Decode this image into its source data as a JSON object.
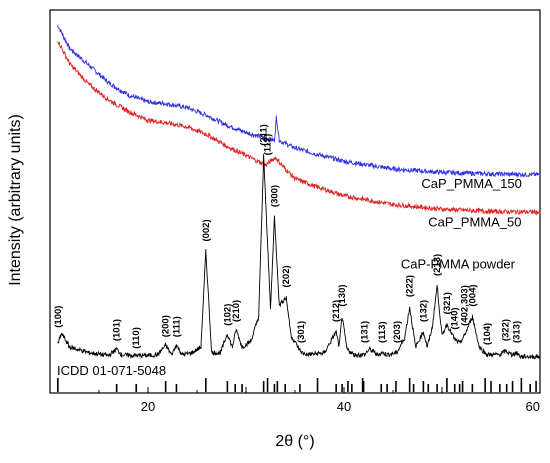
{
  "chart_data": {
    "type": "line",
    "title": "",
    "xlabel": "2θ (°)",
    "ylabel": "Intensity (arbitrary units)",
    "xlim": [
      10,
      60
    ],
    "xticks": [
      20,
      40,
      60
    ],
    "ylim": [
      0,
      100
    ],
    "y_ticks_shown": false,
    "grid": false,
    "colors": {
      "blue": "#3030e0",
      "red": "#e02020",
      "black": "#000000"
    },
    "series": [
      {
        "name": "CaP_PMMA_150",
        "color": "#3030e0",
        "x": [
          10.8,
          12,
          14,
          16,
          18,
          20,
          22,
          24,
          26,
          28,
          30,
          32,
          32.9,
          33.1,
          33.4,
          33.7,
          35,
          37,
          40,
          45,
          50,
          55,
          60
        ],
        "y": [
          96,
          90,
          85.5,
          81,
          77.8,
          76,
          75.5,
          74.5,
          72.5,
          70,
          68,
          66.5,
          66,
          72,
          66,
          65.5,
          64,
          62.5,
          60.5,
          58.5,
          57.6,
          57.2,
          57
        ]
      },
      {
        "name": "CaP_PMMA_50",
        "color": "#e02020",
        "x": [
          10.8,
          12,
          14,
          16,
          18,
          20,
          22,
          24,
          26,
          28,
          30,
          32,
          33,
          34,
          35,
          37,
          40,
          45,
          50,
          55,
          60
        ],
        "y": [
          92,
          86,
          80.5,
          76.5,
          73.5,
          71.2,
          70.5,
          69.5,
          67.5,
          64.5,
          62,
          59.5,
          61.5,
          58.5,
          56,
          54,
          51.5,
          49.2,
          48,
          47.4,
          47.2
        ]
      },
      {
        "name": "CaP-PMMA powder",
        "color": "#000000",
        "x": [
          10.8,
          11.2,
          12,
          14,
          16,
          16.8,
          17.3,
          18,
          19,
          20,
          21,
          21.8,
          22.4,
          22.9,
          23.5,
          24.5,
          25.4,
          25.9,
          26.5,
          27.4,
          28.1,
          28.6,
          29,
          29.6,
          30.5,
          31.3,
          31.8,
          32.2,
          32.5,
          32.9,
          33.4,
          34.1,
          34.6,
          35.3,
          35.7,
          36.3,
          38,
          39.2,
          39.5,
          39.8,
          40.3,
          41,
          42.1,
          42.6,
          43.4,
          43.9,
          44.4,
          45.4,
          46.2,
          46.7,
          47.3,
          48.1,
          48.5,
          49,
          49.5,
          50,
          50.5,
          51.3,
          51.8,
          52.3,
          53.1,
          53.8,
          54.6,
          55.9,
          56.5,
          57.1,
          57.6,
          58,
          59,
          60
        ],
        "y": [
          13,
          15.5,
          12,
          10.5,
          9.8,
          11.5,
          10,
          9.8,
          9.8,
          9.8,
          10,
          12.5,
          10,
          12.5,
          10,
          10.5,
          12,
          37,
          10.5,
          10.5,
          15.5,
          12,
          16.5,
          12,
          13.5,
          20,
          62,
          39,
          22,
          46,
          23,
          25,
          15,
          12,
          10.5,
          10,
          10.5,
          16,
          12,
          20,
          11.5,
          10,
          10,
          11.5,
          10,
          10.5,
          10,
          10.5,
          14.5,
          22.5,
          12,
          16,
          12,
          17,
          28,
          15,
          18,
          14,
          13,
          15,
          20,
          12,
          10,
          10,
          11,
          10,
          10.5,
          9.5,
          9.5,
          9.5
        ]
      }
    ],
    "reference_label": "ICDD 01-071-5048",
    "reference_ticks": [
      10.8,
      16.8,
      18.8,
      21.8,
      22.9,
      25.9,
      28.1,
      28.9,
      29.6,
      31.8,
      32.2,
      32.9,
      33.2,
      34.0,
      35.5,
      37.3,
      39.2,
      39.8,
      40.4,
      40.8,
      41.9,
      42.0,
      43.8,
      44.4,
      45.3,
      46.7,
      47.1,
      48.1,
      48.6,
      49.5,
      50.5,
      51.3,
      51.8,
      52.1,
      53.1,
      54.4,
      55.0,
      55.9,
      56.6,
      57.2,
      58.1,
      59.0,
      59.6
    ],
    "peak_labels": [
      {
        "text": "(100)",
        "x": 10.8,
        "y": 16,
        "rot": -90
      },
      {
        "text": "(101)",
        "x": 16.8,
        "y": 12.5,
        "rot": -90
      },
      {
        "text": "(110)",
        "x": 18.8,
        "y": 10.5,
        "rot": -90
      },
      {
        "text": "(200)",
        "x": 21.8,
        "y": 13.5,
        "rot": -90
      },
      {
        "text": "(111)",
        "x": 22.9,
        "y": 13.5,
        "rot": -90
      },
      {
        "text": "(002)",
        "x": 25.9,
        "y": 38.5,
        "rot": -90
      },
      {
        "text": "(102)",
        "x": 28.1,
        "y": 16.5,
        "rot": -90
      },
      {
        "text": "(210)",
        "x": 29.0,
        "y": 17.5,
        "rot": -90
      },
      {
        "text": "(211)",
        "x": 31.8,
        "y": 63.5,
        "rot": -90
      },
      {
        "text": "(112)",
        "x": 32.2,
        "y": 61,
        "rot": -90
      },
      {
        "text": "(300)",
        "x": 32.9,
        "y": 47.5,
        "rot": -90
      },
      {
        "text": "(202)",
        "x": 34.1,
        "y": 26.5,
        "rot": -90
      },
      {
        "text": "(301)",
        "x": 35.6,
        "y": 12,
        "rot": -90
      },
      {
        "text": "(212)",
        "x": 39.2,
        "y": 17.5,
        "rot": -90
      },
      {
        "text": "(130)",
        "x": 39.8,
        "y": 21.5,
        "rot": -90
      },
      {
        "text": "(131)",
        "x": 42.1,
        "y": 12,
        "rot": -90
      },
      {
        "text": "(113)",
        "x": 43.9,
        "y": 12,
        "rot": -90
      },
      {
        "text": "(203)",
        "x": 45.4,
        "y": 12,
        "rot": -90
      },
      {
        "text": "(222)",
        "x": 46.7,
        "y": 24,
        "rot": -90
      },
      {
        "text": "(132)",
        "x": 48.1,
        "y": 17.5,
        "rot": -90
      },
      {
        "text": "(213)",
        "x": 49.5,
        "y": 29.5,
        "rot": -90
      },
      {
        "text": "(321)",
        "x": 50.5,
        "y": 19.5,
        "rot": -90
      },
      {
        "text": "(140)",
        "x": 51.3,
        "y": 15.5,
        "rot": -90
      },
      {
        "text": "(402,303)",
        "x": 52.3,
        "y": 16.5,
        "rot": -90
      },
      {
        "text": "(004)",
        "x": 53.1,
        "y": 21.5,
        "rot": -90
      },
      {
        "text": "(104)",
        "x": 54.6,
        "y": 11.5,
        "rot": -90
      },
      {
        "text": "(322)",
        "x": 56.5,
        "y": 12.5,
        "rot": -90
      },
      {
        "text": "(313)",
        "x": 57.6,
        "y": 12,
        "rot": -90
      }
    ],
    "series_text_labels": [
      {
        "text": "CaP_PMMA_150",
        "x": 47.9,
        "y": 53.5
      },
      {
        "text": "CaP_PMMA_50",
        "x": 48.6,
        "y": 43.5
      },
      {
        "text": "CaP-PMMA powder",
        "x": 45.8,
        "y": 32.5
      }
    ]
  }
}
